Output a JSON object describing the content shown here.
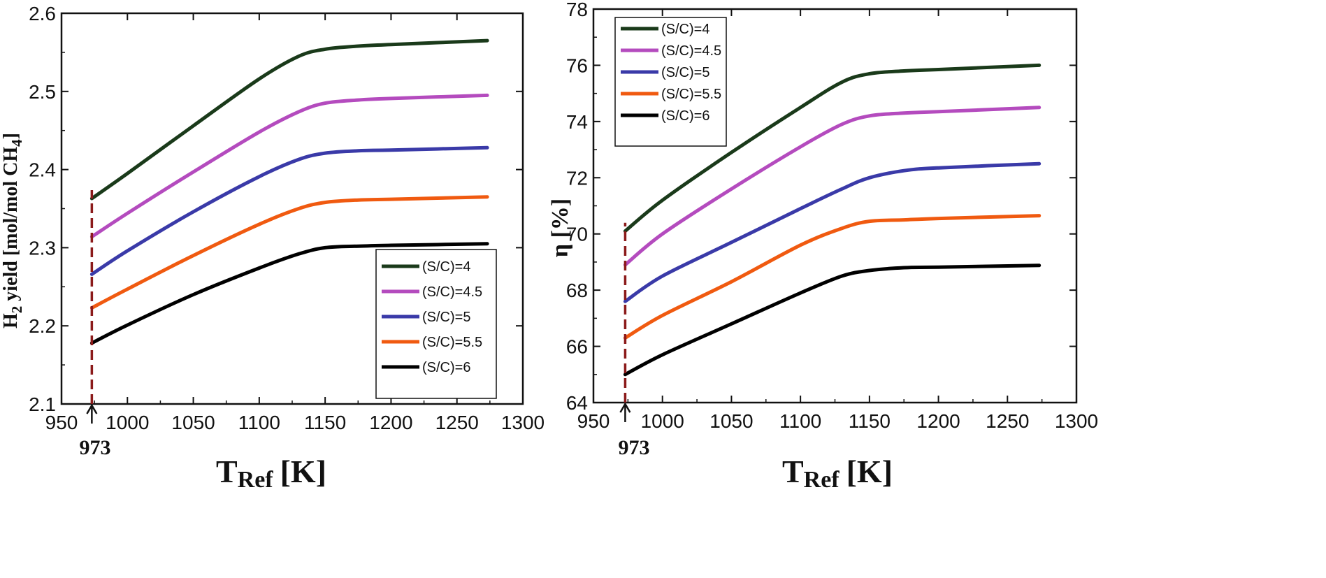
{
  "chart_data": [
    {
      "type": "line",
      "xlabel_main": "T",
      "xlabel_sub": "Ref",
      "xlabel_unit": "[K]",
      "ylabel_main": "H",
      "ylabel_sub2": "2",
      "ylabel_rest": " yield [mol/mol CH",
      "ylabel_sub4": "4",
      "ylabel_close": "]",
      "xlim": [
        950,
        1300
      ],
      "ylim": [
        2.1,
        2.6
      ],
      "x_ticks": [
        950,
        1000,
        1050,
        1100,
        1150,
        1200,
        1250,
        1300
      ],
      "y_ticks": [
        2.1,
        2.2,
        2.3,
        2.4,
        2.5,
        2.6
      ],
      "x_tick_labels": [
        "950",
        "1000",
        "1050",
        "1100",
        "1150",
        "1200",
        "1250",
        "1300"
      ],
      "y_tick_labels": [
        "2.1",
        "2.2",
        "2.3",
        "2.4",
        "2.5",
        "2.6"
      ],
      "reference": {
        "x": 973,
        "label": "973"
      },
      "legend": {
        "position": "bottom-right"
      },
      "series": [
        {
          "name": "(S/C)=4",
          "color": "#1a3a1a",
          "x": [
            973,
            1000,
            1050,
            1100,
            1130,
            1150,
            1175,
            1200,
            1273
          ],
          "values": [
            2.363,
            2.395,
            2.456,
            2.516,
            2.545,
            2.554,
            2.558,
            2.56,
            2.565
          ]
        },
        {
          "name": "(S/C)=4.5",
          "color": "#b44bbe",
          "x": [
            973,
            1000,
            1050,
            1100,
            1130,
            1150,
            1175,
            1200,
            1273
          ],
          "values": [
            2.314,
            2.344,
            2.397,
            2.448,
            2.474,
            2.485,
            2.489,
            2.491,
            2.495
          ]
        },
        {
          "name": "(S/C)=5",
          "color": "#3a3aa8",
          "x": [
            973,
            1000,
            1050,
            1100,
            1130,
            1150,
            1175,
            1200,
            1273
          ],
          "values": [
            2.266,
            2.296,
            2.346,
            2.391,
            2.413,
            2.421,
            2.424,
            2.425,
            2.428
          ]
        },
        {
          "name": "(S/C)=5.5",
          "color": "#f05a10",
          "x": [
            973,
            1000,
            1050,
            1100,
            1130,
            1150,
            1175,
            1200,
            1273
          ],
          "values": [
            2.223,
            2.247,
            2.29,
            2.33,
            2.35,
            2.358,
            2.361,
            2.362,
            2.365
          ]
        },
        {
          "name": "(S/C)=6",
          "color": "#000000",
          "x": [
            973,
            1000,
            1050,
            1100,
            1130,
            1150,
            1175,
            1200,
            1273
          ],
          "values": [
            2.178,
            2.201,
            2.24,
            2.274,
            2.292,
            2.3,
            2.302,
            2.303,
            2.305
          ]
        }
      ]
    },
    {
      "type": "line",
      "xlabel_main": "T",
      "xlabel_sub": "Ref",
      "xlabel_unit": "[K]",
      "ylabel": "η [%]",
      "xlim": [
        950,
        1300
      ],
      "ylim": [
        64,
        78
      ],
      "x_ticks": [
        950,
        1000,
        1050,
        1100,
        1150,
        1200,
        1250,
        1300
      ],
      "y_ticks": [
        64,
        66,
        68,
        70,
        72,
        74,
        76,
        78
      ],
      "x_tick_labels": [
        "950",
        "1000",
        "1050",
        "1100",
        "1150",
        "1200",
        "1250",
        "1300"
      ],
      "y_tick_labels": [
        "64",
        "66",
        "68",
        "70",
        "72",
        "74",
        "76",
        "78"
      ],
      "reference": {
        "x": 973,
        "label": "973"
      },
      "legend": {
        "position": "top-left"
      },
      "series": [
        {
          "name": "(S/C)=4",
          "color": "#1a3a1a",
          "x": [
            973,
            1000,
            1050,
            1100,
            1130,
            1150,
            1175,
            1200,
            1273
          ],
          "values": [
            70.1,
            71.2,
            72.9,
            74.5,
            75.4,
            75.7,
            75.8,
            75.85,
            76.0
          ]
        },
        {
          "name": "(S/C)=4.5",
          "color": "#b44bbe",
          "x": [
            973,
            1000,
            1050,
            1100,
            1130,
            1150,
            1175,
            1200,
            1273
          ],
          "values": [
            68.9,
            70.0,
            71.6,
            73.1,
            73.9,
            74.2,
            74.3,
            74.35,
            74.5
          ]
        },
        {
          "name": "(S/C)=5",
          "color": "#3a3aa8",
          "x": [
            973,
            1000,
            1050,
            1100,
            1130,
            1150,
            1175,
            1200,
            1273
          ],
          "values": [
            67.6,
            68.5,
            69.7,
            70.9,
            71.6,
            72.0,
            72.25,
            72.35,
            72.5
          ]
        },
        {
          "name": "(S/C)=5.5",
          "color": "#f05a10",
          "x": [
            973,
            1000,
            1050,
            1100,
            1130,
            1150,
            1175,
            1200,
            1273
          ],
          "values": [
            66.3,
            67.1,
            68.3,
            69.6,
            70.2,
            70.45,
            70.5,
            70.55,
            70.65
          ]
        },
        {
          "name": "(S/C)=6",
          "color": "#000000",
          "x": [
            973,
            1000,
            1050,
            1100,
            1130,
            1150,
            1175,
            1200,
            1273
          ],
          "values": [
            65.0,
            65.7,
            66.8,
            67.9,
            68.5,
            68.7,
            68.8,
            68.82,
            68.88
          ]
        }
      ]
    }
  ]
}
